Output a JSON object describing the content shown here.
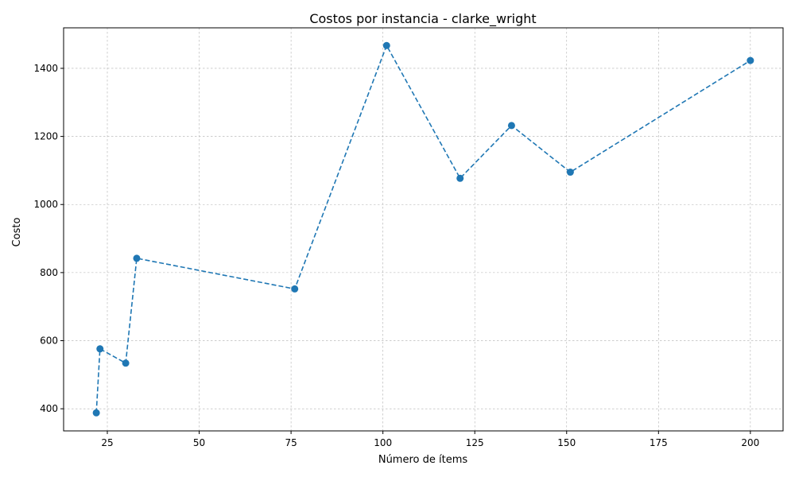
{
  "chart_data": {
    "type": "line",
    "title": "Costos por instancia - clarke_wright",
    "xlabel": "Número de ítems",
    "ylabel": "Costo",
    "x": [
      22,
      23,
      30,
      33,
      76,
      101,
      121,
      135,
      151,
      200
    ],
    "series": [
      {
        "values": [
          388,
          576,
          534,
          842,
          752,
          1467,
          1077,
          1232,
          1095,
          1423
        ],
        "color": "#1f77b4",
        "line_style": "dashed",
        "marker": "circle"
      }
    ],
    "xlim": [
      13.1,
      208.9
    ],
    "ylim": [
      335,
      1519
    ],
    "xticks": [
      25,
      50,
      75,
      100,
      125,
      150,
      175,
      200
    ],
    "yticks": [
      400,
      600,
      800,
      1000,
      1200,
      1400
    ],
    "grid": true
  }
}
